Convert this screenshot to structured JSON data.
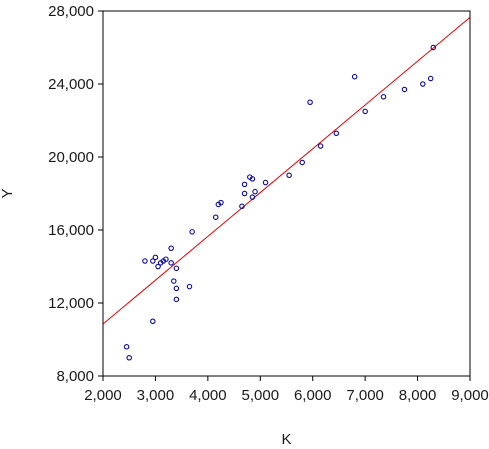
{
  "chart_data": {
    "type": "scatter",
    "title": "",
    "xlabel": "K",
    "ylabel": "Y",
    "xlim": [
      2000,
      9000
    ],
    "ylim": [
      8000,
      28000
    ],
    "x_ticks": [
      2000,
      3000,
      4000,
      5000,
      6000,
      7000,
      8000,
      9000
    ],
    "y_ticks": [
      8000,
      12000,
      16000,
      20000,
      24000,
      28000
    ],
    "x_tick_labels": [
      "2,000",
      "3,000",
      "4,000",
      "5,000",
      "6,000",
      "7,000",
      "8,000",
      "9,000"
    ],
    "y_tick_labels": [
      "8,000",
      "12,000",
      "16,000",
      "20,000",
      "24,000",
      "28,000"
    ],
    "grid": false,
    "legend": "none",
    "colors": {
      "points": "#0a0aa0",
      "fit_line": "#e60000",
      "axes": "#000000"
    },
    "series": [
      {
        "kind": "points",
        "x": [
          2450,
          2500,
          2800,
          2950,
          2950,
          3000,
          3050,
          3100,
          3150,
          3200,
          3300,
          3300,
          3350,
          3400,
          3400,
          3400,
          3650,
          3700,
          4150,
          4200,
          4250,
          4650,
          4700,
          4700,
          4800,
          4850,
          4850,
          4900,
          5100,
          5550,
          5800,
          5950,
          6150,
          6450,
          6800,
          7000,
          7350,
          7750,
          8100,
          8250,
          8300
        ],
        "y": [
          9600,
          9000,
          14300,
          11000,
          14300,
          14500,
          14000,
          14200,
          14300,
          14400,
          15000,
          14200,
          13200,
          12800,
          12200,
          13900,
          12900,
          15900,
          16700,
          17400,
          17500,
          17300,
          18500,
          18000,
          18900,
          17800,
          18800,
          18100,
          18600,
          19000,
          19700,
          23000,
          20600,
          21300,
          24400,
          22500,
          23300,
          23700,
          24000,
          24300,
          26000
        ]
      },
      {
        "kind": "fit_line",
        "x": [
          2000,
          9000
        ],
        "y": [
          10850,
          27650
        ]
      }
    ]
  }
}
